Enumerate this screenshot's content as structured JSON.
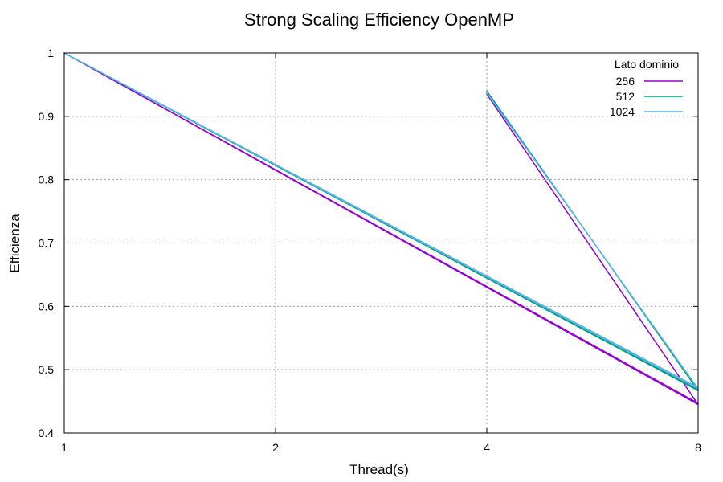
{
  "chart_data": {
    "type": "line",
    "title": "Strong Scaling Efficiency OpenMP",
    "xlabel": "Thread(s)",
    "ylabel": "Efficienza",
    "x_scale": "log2",
    "x_ticks": [
      1,
      2,
      4,
      8
    ],
    "xlim": [
      1,
      8
    ],
    "y_ticks": [
      0.4,
      0.5,
      0.6,
      0.7,
      0.8,
      0.9,
      1
    ],
    "ylim": [
      0.4,
      1.0
    ],
    "grid": true,
    "legend": {
      "title": "Lato dominio",
      "placement": "top-right"
    },
    "series": [
      {
        "name": "256",
        "color": "#9400d3",
        "points": [
          [
            1,
            1.0
          ],
          [
            8,
            0.445
          ],
          [
            4,
            0.935
          ],
          [
            8,
            0.445
          ],
          [
            1,
            1.0
          ],
          [
            8,
            0.447
          ]
        ]
      },
      {
        "name": "512",
        "color": "#009e73",
        "points": [
          [
            1,
            1.0
          ],
          [
            8,
            0.467
          ],
          [
            4,
            0.94
          ],
          [
            8,
            0.467
          ],
          [
            1,
            1.0
          ],
          [
            8,
            0.469
          ]
        ]
      },
      {
        "name": "1024",
        "color": "#56b4e9",
        "points": [
          [
            1,
            1.0
          ],
          [
            8,
            0.47
          ],
          [
            4,
            0.937
          ],
          [
            8,
            0.47
          ],
          [
            1,
            1.0
          ],
          [
            8,
            0.472
          ]
        ]
      }
    ]
  }
}
